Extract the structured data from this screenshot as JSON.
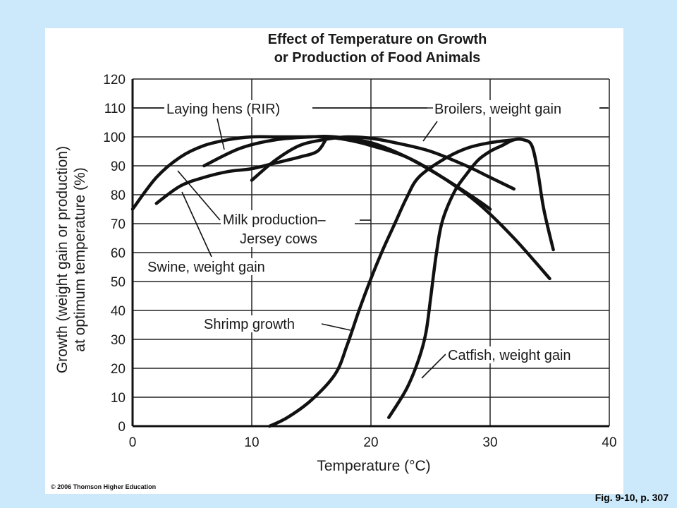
{
  "chart_data": {
    "type": "line",
    "title": [
      "Effect of Temperature on Growth",
      "or Production of Food Animals"
    ],
    "xlabel": "Temperature (°C)",
    "ylabel": [
      "Growth (weight gain or production)",
      "at optimum temperature (%)"
    ],
    "xlim": [
      0,
      40
    ],
    "ylim": [
      0,
      120
    ],
    "xticks": [
      0,
      10,
      20,
      30,
      40
    ],
    "yticks": [
      0,
      10,
      20,
      30,
      40,
      50,
      60,
      70,
      80,
      90,
      100,
      110,
      120
    ],
    "grid": true,
    "series": [
      {
        "name": "Laying hens (RIR)",
        "x": [
          6,
          9,
          12,
          15,
          17,
          20,
          23,
          26,
          29,
          30
        ],
        "y": [
          90,
          96,
          99,
          100,
          100,
          98,
          93,
          86,
          78,
          75
        ]
      },
      {
        "name": "Broilers, weight gain",
        "x": [
          10,
          12,
          14,
          16,
          18,
          20,
          22,
          25,
          28,
          30,
          32
        ],
        "y": [
          85,
          92,
          97,
          99,
          100,
          99.5,
          98,
          95,
          90,
          86,
          82
        ]
      },
      {
        "name": "Milk production– Jersey cows",
        "x": [
          0,
          2,
          4,
          6,
          8,
          10,
          12,
          14,
          16,
          18,
          20,
          23,
          26,
          29,
          32,
          35
        ],
        "y": [
          75,
          86,
          93,
          97,
          99,
          100,
          100,
          100,
          100,
          99,
          97,
          93,
          86,
          77,
          65,
          51
        ]
      },
      {
        "name": "Swine, weight gain",
        "x": [
          2,
          4,
          6,
          8,
          10,
          12,
          14,
          15.5,
          16.2
        ],
        "y": [
          77,
          83,
          86,
          88,
          89,
          91,
          93,
          95,
          99
        ]
      },
      {
        "name": "Shrimp growth",
        "x": [
          11.5,
          13,
          15,
          17,
          18,
          19,
          20,
          21,
          22,
          23,
          24,
          26,
          28,
          30,
          32
        ],
        "y": [
          0,
          3,
          9,
          18,
          28,
          40,
          51,
          61,
          70,
          79,
          86,
          92,
          96,
          98,
          99
        ]
      },
      {
        "name": "Catfish, weight gain",
        "x": [
          21.5,
          23,
          24,
          24.6,
          25,
          25.5,
          26,
          27,
          28,
          29,
          30,
          31,
          32,
          32.8,
          33.5,
          34,
          34.5,
          35.3
        ],
        "y": [
          3,
          13,
          23,
          32,
          44,
          60,
          71,
          81,
          87,
          92,
          95,
          97,
          99,
          99,
          97,
          88,
          75,
          61
        ]
      }
    ],
    "annotations": [
      "Laying hens (RIR)",
      "Broilers, weight gain",
      "Milk production–",
      "Jersey cows",
      "Swine, weight gain",
      "Shrimp growth",
      "Catfish, weight gain"
    ]
  },
  "footer": {
    "copyright": "© 2006 Thomson Higher Education",
    "figure_ref": "Fig. 9-10, p. 307"
  }
}
